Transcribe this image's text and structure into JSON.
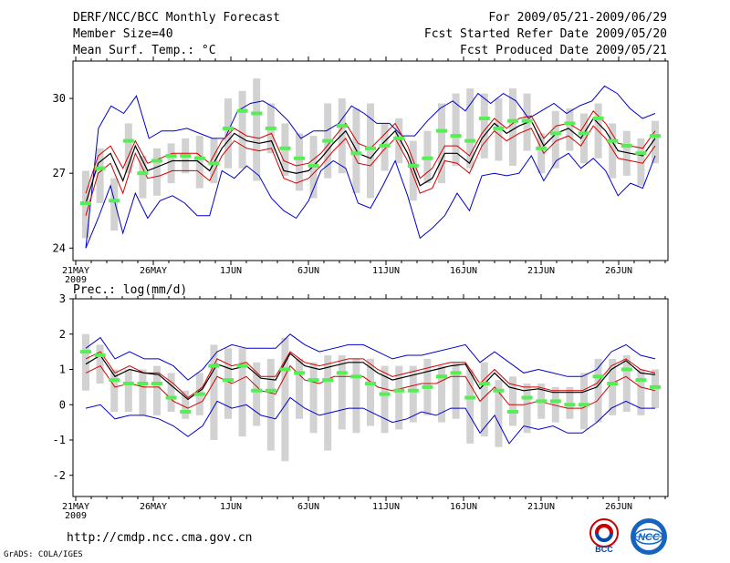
{
  "header": {
    "title": "DERF/NCC/BCC Monthly Forecast",
    "member_size": "Member Size=40",
    "variable": "Mean Surf. Temp.: °C",
    "forecast_range": "For 2009/05/21-2009/06/29",
    "started_refer": "Fcst Started Refer Date 2009/05/20",
    "produced": "Fcst Produced Date 2009/05/21"
  },
  "footer": {
    "url": "http://cmdp.ncc.cma.gov.cn",
    "credit": "GrADS: COLA/IGES",
    "logo_bcc": "BCC",
    "logo_ncc": "NCC"
  },
  "colors": {
    "bound": "#0000cc",
    "spread": "#d40000",
    "mean": "#000000",
    "box": "#d2d2d2",
    "obs": "#55ee55"
  },
  "chart_data": [
    {
      "type": "line",
      "name": "temperature",
      "title": "Mean Surf. Temp.: °C",
      "x_tick_labels": [
        "21MAY",
        "26MAY",
        "1JUN",
        "6JUN",
        "11JUN",
        "16JUN",
        "21JUN",
        "26JUN"
      ],
      "x_tick_days": [
        1,
        6,
        11,
        16,
        21,
        26,
        31,
        36
      ],
      "year_label": "2009",
      "ylim": [
        23.5,
        31.5
      ],
      "y_ticks": [
        24,
        27,
        30
      ],
      "days": 39,
      "series": [
        {
          "name": "max",
          "values": [
            24.0,
            28.8,
            29.7,
            29.4,
            30.1,
            28.4,
            28.7,
            28.7,
            28.8,
            28.6,
            28.4,
            28.4,
            29.5,
            29.8,
            29.9,
            29.6,
            29.1,
            28.4,
            28.7,
            28.7,
            29.0,
            29.7,
            29.4,
            29.0,
            29.0,
            28.5,
            28.5,
            29.1,
            29.6,
            29.9,
            29.5,
            30.2,
            29.8,
            30.2,
            29.9,
            29.2,
            29.5,
            29.8,
            29.4,
            29.7,
            29.9,
            30.5,
            30.2,
            29.6,
            29.2,
            29.4
          ],
          "values_note": "unused"
        },
        {
          "name": "upper",
          "values": [
            26.2,
            27.7,
            28.1,
            27.2,
            28.3,
            27.4,
            27.6,
            27.8,
            27.8,
            27.8,
            27.4,
            28.3,
            28.8,
            28.5,
            28.4,
            28.6,
            27.5,
            27.3,
            27.4,
            27.8,
            28.4,
            29.0,
            28.2,
            28.0,
            28.5,
            29.0,
            28.1,
            26.8,
            27.2,
            28.1,
            28.1,
            27.7,
            28.6,
            29.2,
            28.8,
            29.2,
            29.3,
            28.4,
            28.9,
            29.0,
            28.7,
            29.5,
            29.0,
            28.2,
            28.1,
            28.0,
            28.7
          ]
        },
        {
          "name": "mean",
          "values": [
            25.8,
            27.4,
            27.8,
            26.7,
            28.1,
            27.1,
            27.3,
            27.5,
            27.5,
            27.5,
            27.1,
            28.0,
            28.6,
            28.3,
            28.2,
            28.3,
            27.1,
            27.0,
            27.1,
            27.6,
            28.2,
            28.7,
            27.8,
            27.6,
            28.2,
            28.7,
            27.8,
            26.5,
            26.8,
            27.8,
            27.8,
            27.4,
            28.4,
            29.0,
            28.6,
            28.9,
            29.1,
            28.1,
            28.6,
            28.8,
            28.4,
            29.2,
            28.7,
            27.9,
            27.8,
            27.7,
            28.4
          ]
        },
        {
          "name": "lower",
          "values": [
            25.3,
            27.0,
            27.4,
            26.2,
            27.8,
            26.8,
            26.9,
            27.1,
            27.1,
            27.1,
            26.7,
            27.7,
            28.3,
            28.0,
            27.9,
            28.0,
            26.8,
            26.6,
            26.8,
            27.3,
            27.9,
            28.4,
            27.4,
            27.3,
            27.9,
            28.4,
            27.5,
            26.2,
            26.4,
            27.5,
            27.4,
            27.0,
            28.1,
            28.7,
            28.3,
            28.6,
            28.8,
            27.8,
            28.3,
            28.5,
            28.1,
            28.9,
            28.4,
            27.6,
            27.5,
            27.4,
            28.1
          ]
        },
        {
          "name": "min",
          "values": [
            24.0,
            25.2,
            26.5,
            24.6,
            26.2,
            25.2,
            25.9,
            26.1,
            25.8,
            25.3,
            25.3,
            27.1,
            26.8,
            27.3,
            26.9,
            26.0,
            25.5,
            25.2,
            25.9,
            27.1,
            27.5,
            27.2,
            25.8,
            25.6,
            26.5,
            27.5,
            26.1,
            24.4,
            24.8,
            25.3,
            26.2,
            25.5,
            26.9,
            27.0,
            26.9,
            27.0,
            27.7,
            26.7,
            27.5,
            27.8,
            27.2,
            27.6,
            27.1,
            26.1,
            26.6,
            26.4,
            27.7
          ]
        }
      ],
      "observed": [
        25.8,
        27.2,
        25.9,
        28.3,
        27.0,
        27.5,
        27.7,
        27.7,
        27.6,
        27.4,
        28.8,
        29.5,
        29.4,
        28.8,
        28.0,
        27.6,
        27.3,
        28.3,
        28.9,
        27.8,
        28.0,
        28.1,
        28.4,
        27.3,
        27.6,
        28.7,
        28.5,
        28.3,
        29.2,
        28.8,
        29.1,
        29.1,
        28.0,
        28.6,
        29.0,
        28.6,
        29.2,
        28.3,
        28.1,
        27.8,
        28.5
      ],
      "box_low": [
        24.4,
        25.8,
        24.7,
        27.0,
        26.0,
        26.1,
        26.6,
        27.0,
        26.4,
        26.6,
        27.2,
        27.2,
        26.7,
        27.8,
        26.9,
        26.3,
        26.0,
        26.8,
        27.0,
        26.2,
        26.0,
        27.1,
        27.4,
        25.9,
        26.6,
        26.6,
        27.3,
        27.2,
        27.6,
        27.5,
        27.3,
        27.9,
        27.0,
        27.2,
        27.9,
        27.4,
        27.6,
        26.8,
        26.9,
        26.5,
        27.4
      ],
      "box_high": [
        27.1,
        28.0,
        26.8,
        29.0,
        27.7,
        28.0,
        28.2,
        28.4,
        28.5,
        28.4,
        30.0,
        30.3,
        30.8,
        29.8,
        29.0,
        28.6,
        28.5,
        29.8,
        30.0,
        29.6,
        29.8,
        29.0,
        29.2,
        28.3,
        28.7,
        29.8,
        30.2,
        30.4,
        30.2,
        30.0,
        30.4,
        30.2,
        28.6,
        29.5,
        29.6,
        29.4,
        29.8,
        29.0,
        28.7,
        28.4,
        29.1
      ]
    },
    {
      "type": "line",
      "name": "precipitation",
      "title": "Prec.: log(mm/d)",
      "x_tick_labels": [
        "21MAY",
        "26MAY",
        "1JUN",
        "6JUN",
        "11JUN",
        "16JUN",
        "21JUN",
        "26JUN"
      ],
      "x_tick_days": [
        1,
        6,
        11,
        16,
        21,
        26,
        31,
        36
      ],
      "year_label": "2009",
      "ylim": [
        -2.6,
        3.0
      ],
      "y_ticks": [
        -2,
        -1,
        0,
        1,
        2,
        3
      ],
      "days": 39,
      "series": [
        {
          "name": "max",
          "values": [
            1.6,
            1.9,
            1.3,
            1.5,
            1.3,
            1.3,
            1.1,
            0.7,
            1.0,
            1.5,
            1.7,
            1.6,
            1.6,
            1.6,
            2.0,
            1.7,
            1.5,
            1.6,
            1.7,
            1.7,
            1.5,
            1.3,
            1.4,
            1.4,
            1.5,
            1.6,
            1.7,
            1.2,
            1.5,
            1.2,
            0.9,
            1.0,
            0.9,
            0.8,
            0.8,
            1.0,
            1.5,
            1.7,
            1.4,
            1.3
          ]
        },
        {
          "name": "upper",
          "values": [
            1.3,
            1.5,
            0.9,
            1.1,
            0.9,
            0.9,
            0.6,
            0.2,
            0.5,
            1.3,
            1.1,
            1.2,
            0.8,
            0.8,
            1.5,
            1.2,
            1.1,
            1.2,
            1.3,
            1.3,
            1.0,
            0.8,
            0.9,
            1.0,
            1.1,
            1.2,
            1.2,
            0.6,
            1.0,
            0.6,
            0.5,
            0.5,
            0.4,
            0.4,
            0.4,
            0.6,
            1.1,
            1.3,
            1.0,
            0.9
          ]
        },
        {
          "name": "mean",
          "values": [
            1.15,
            1.4,
            0.8,
            1.0,
            0.9,
            0.85,
            0.5,
            0.15,
            0.45,
            1.15,
            1.0,
            1.1,
            0.75,
            0.7,
            1.45,
            1.1,
            1.0,
            1.1,
            1.2,
            1.2,
            0.9,
            0.7,
            0.8,
            0.9,
            1.0,
            1.1,
            1.15,
            0.45,
            0.9,
            0.5,
            0.4,
            0.45,
            0.35,
            0.35,
            0.35,
            0.5,
            1.0,
            1.25,
            0.9,
            0.85
          ]
        },
        {
          "name": "lower",
          "values": [
            0.9,
            1.1,
            0.5,
            0.6,
            0.5,
            0.5,
            0.1,
            -0.1,
            0.1,
            0.8,
            0.6,
            0.8,
            0.4,
            0.3,
            1.1,
            0.7,
            0.6,
            0.8,
            0.8,
            0.8,
            0.5,
            0.4,
            0.5,
            0.6,
            0.6,
            0.8,
            0.8,
            0.1,
            0.5,
            0.0,
            0.0,
            0.1,
            0.0,
            -0.1,
            -0.1,
            0.1,
            0.6,
            0.8,
            0.5,
            0.4
          ]
        },
        {
          "name": "min",
          "values": [
            -0.1,
            0.0,
            -0.4,
            -0.3,
            -0.3,
            -0.4,
            -0.6,
            -0.9,
            -0.6,
            0.1,
            -0.1,
            0.0,
            -0.3,
            -0.4,
            0.2,
            -0.1,
            -0.3,
            -0.2,
            -0.1,
            -0.1,
            -0.3,
            -0.5,
            -0.4,
            -0.2,
            -0.3,
            -0.1,
            -0.1,
            -0.8,
            -0.3,
            -1.1,
            -0.6,
            -0.7,
            -0.6,
            -0.8,
            -0.8,
            -0.5,
            -0.1,
            0.1,
            -0.1,
            -0.1
          ]
        }
      ],
      "observed": [
        1.5,
        1.4,
        0.7,
        0.6,
        0.6,
        0.6,
        0.2,
        -0.2,
        0.3,
        1.1,
        0.7,
        1.1,
        0.4,
        0.4,
        1.0,
        0.9,
        0.7,
        0.7,
        0.9,
        0.8,
        0.6,
        0.3,
        0.4,
        0.4,
        0.5,
        0.8,
        0.9,
        0.2,
        0.6,
        0.4,
        -0.2,
        0.2,
        0.1,
        0.1,
        0.0,
        0.0,
        0.8,
        0.6,
        1.0,
        0.7,
        0.5
      ],
      "box_low": [
        0.4,
        0.6,
        -0.2,
        -0.2,
        -0.3,
        -0.3,
        -0.2,
        -0.4,
        -0.3,
        -1.0,
        -0.4,
        -0.9,
        -0.6,
        -1.3,
        -1.6,
        -0.4,
        -0.8,
        -1.3,
        -0.7,
        -0.8,
        -0.6,
        -0.8,
        -0.7,
        -0.5,
        -0.3,
        -0.5,
        -0.4,
        -1.1,
        -0.9,
        -1.2,
        -0.6,
        -0.8,
        -0.4,
        -0.5,
        -0.4,
        -0.7,
        -0.5,
        -0.3,
        -0.2,
        -0.3,
        -0.1
      ],
      "box_high": [
        2.0,
        1.7,
        1.0,
        1.0,
        1.0,
        1.1,
        0.9,
        0.4,
        0.9,
        1.7,
        1.6,
        1.6,
        1.2,
        1.3,
        1.9,
        1.3,
        1.2,
        1.4,
        1.4,
        1.3,
        1.3,
        1.1,
        1.1,
        1.1,
        1.3,
        1.1,
        1.2,
        1.0,
        1.2,
        0.7,
        0.8,
        0.6,
        0.6,
        0.5,
        0.5,
        0.9,
        1.3,
        1.3,
        1.4,
        1.0,
        1.0
      ]
    }
  ]
}
